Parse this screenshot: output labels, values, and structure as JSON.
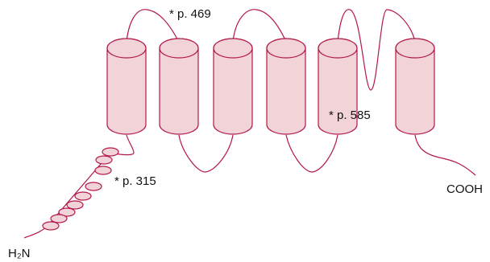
{
  "labels": {
    "site_469": "* p. 469",
    "site_585": "* p. 585",
    "site_315": "* p. 315",
    "c_terminus": "COOH",
    "n_terminus": "H₂N"
  }
}
